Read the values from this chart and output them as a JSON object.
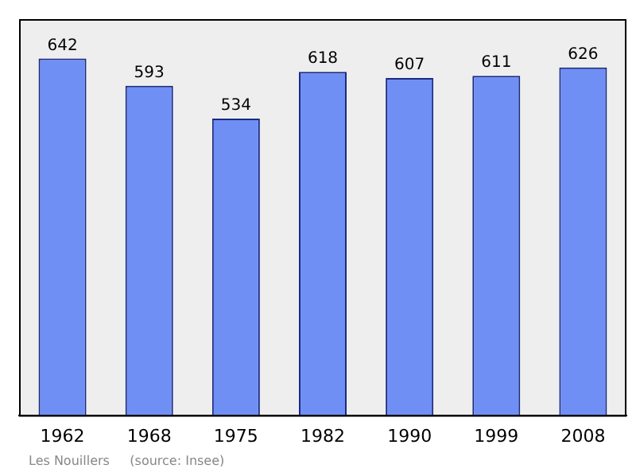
{
  "chart_data": {
    "type": "bar",
    "categories": [
      "1962",
      "1968",
      "1975",
      "1982",
      "1990",
      "1999",
      "2008"
    ],
    "values": [
      642,
      593,
      534,
      618,
      607,
      611,
      626
    ],
    "color": "#6f8ff5",
    "ylim": [
      0,
      713
    ],
    "data_labels": true,
    "grid": false,
    "legend": false,
    "tick_labels": "x",
    "annotations": [
      "Les Nouillers     (source: Insee)"
    ]
  }
}
